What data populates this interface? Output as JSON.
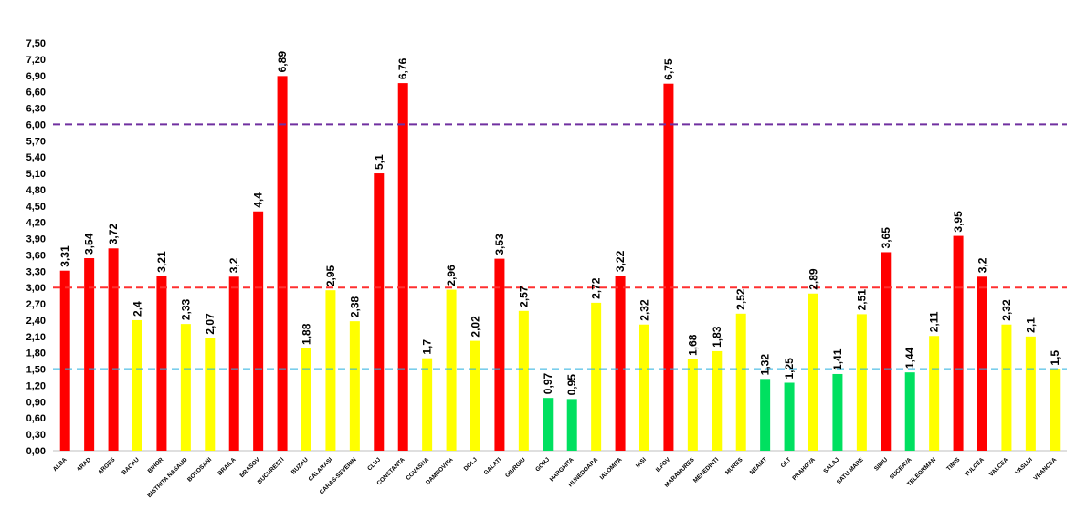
{
  "chart_data": {
    "type": "bar",
    "title": "",
    "xlabel": "",
    "ylabel": "",
    "ylim": [
      0,
      7.5
    ],
    "ytick_step": 0.3,
    "ytick_labels": [
      "0,00",
      "0,30",
      "0,60",
      "0,90",
      "1,20",
      "1,50",
      "1,80",
      "2,10",
      "2,40",
      "2,70",
      "3,00",
      "3,30",
      "3,60",
      "3,90",
      "4,20",
      "4,50",
      "4,80",
      "5,10",
      "5,40",
      "5,70",
      "6,00",
      "6,30",
      "6,60",
      "6,90",
      "7,20",
      "7,50"
    ],
    "grid": false,
    "legend": "none",
    "categories": [
      "ALBA",
      "ARAD",
      "ARGES",
      "BACAU",
      "BIHOR",
      "BISTRITA NASAUD",
      "BOTOSANI",
      "BRAILA",
      "BRASOV",
      "BUCURESTI",
      "BUZAU",
      "CALARASI",
      "CARAS-SEVERIN",
      "CLUJ",
      "CONSTANTA",
      "COVASNA",
      "DAMBOVITA",
      "DOLJ",
      "GALATI",
      "GIURGIU",
      "GORJ",
      "HARGHITA",
      "HUNEDOARA",
      "IALOMITA",
      "IASI",
      "ILFOV",
      "MARAMURES",
      "MEHEDINTI",
      "MURES",
      "NEAMT",
      "OLT",
      "PRAHOVA",
      "SALAJ",
      "SATU MARE",
      "SIBIU",
      "SUCEAVA",
      "TELEORMAN",
      "TIMIS",
      "TULCEA",
      "VALCEA",
      "VASLUI",
      "VRANCEA"
    ],
    "values": [
      3.31,
      3.54,
      3.72,
      2.4,
      3.21,
      2.33,
      2.07,
      3.2,
      4.4,
      6.89,
      1.88,
      2.95,
      2.38,
      5.1,
      6.76,
      1.7,
      2.96,
      2.02,
      3.53,
      2.57,
      0.97,
      0.95,
      2.72,
      3.22,
      2.32,
      6.75,
      1.68,
      1.83,
      2.52,
      1.32,
      1.25,
      2.89,
      1.41,
      2.51,
      3.65,
      1.44,
      2.11,
      3.95,
      3.2,
      2.32,
      2.1,
      1.5
    ],
    "value_labels": [
      "3,31",
      "3,54",
      "3,72",
      "2,4",
      "3,21",
      "2,33",
      "2,07",
      "3,2",
      "4,4",
      "6,89",
      "1,88",
      "2,95",
      "2,38",
      "5,1",
      "6,76",
      "1,7",
      "2,96",
      "2,02",
      "3,53",
      "2,57",
      "0,97",
      "0,95",
      "2,72",
      "3,22",
      "2,32",
      "6,75",
      "1,68",
      "1,83",
      "2,52",
      "1,32",
      "1,25",
      "2,89",
      "1,41",
      "2,51",
      "3,65",
      "1,44",
      "2,11",
      "3,95",
      "3,2",
      "2,32",
      "2,1",
      "1,5"
    ],
    "bar_colors": [
      "#ff0000",
      "#ff0000",
      "#ff0000",
      "#ffff00",
      "#ff0000",
      "#ffff00",
      "#ffff00",
      "#ff0000",
      "#ff0000",
      "#ff0000",
      "#ffff00",
      "#ffff00",
      "#ffff00",
      "#ff0000",
      "#ff0000",
      "#ffff00",
      "#ffff00",
      "#ffff00",
      "#ff0000",
      "#ffff00",
      "#00e060",
      "#00e060",
      "#ffff00",
      "#ff0000",
      "#ffff00",
      "#ff0000",
      "#ffff00",
      "#ffff00",
      "#ffff00",
      "#00e060",
      "#00e060",
      "#ffff00",
      "#00e060",
      "#ffff00",
      "#ff0000",
      "#00e060",
      "#ffff00",
      "#ff0000",
      "#ff0000",
      "#ffff00",
      "#ffff00",
      "#ffff00"
    ],
    "reference_lines": [
      {
        "value": 6.0,
        "color": "#7030a0",
        "style": "dashed"
      },
      {
        "value": 3.0,
        "color": "#ff3030",
        "style": "dashed"
      },
      {
        "value": 1.5,
        "color": "#2ab0e0",
        "style": "dashed"
      }
    ]
  }
}
